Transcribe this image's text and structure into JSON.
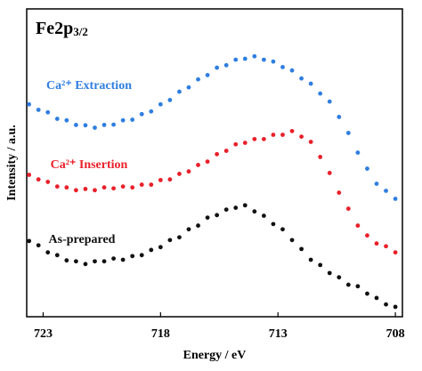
{
  "chart_data": {
    "type": "scatter",
    "title": "Fe2p",
    "title_subscript": "3/2",
    "x_label": "Energy / eV",
    "y_label": "Intensity / a.u.",
    "xlim": [
      723.7,
      707.7
    ],
    "xticks": [
      723,
      718,
      713,
      708
    ],
    "ylim": [
      0,
      100
    ],
    "x": [
      723.6,
      723.2,
      722.8,
      722.4,
      722.0,
      721.6,
      721.2,
      720.8,
      720.4,
      720.0,
      719.6,
      719.2,
      718.8,
      718.4,
      718.0,
      717.6,
      717.2,
      716.8,
      716.4,
      716.0,
      715.6,
      715.2,
      714.8,
      714.4,
      714.0,
      713.6,
      713.2,
      712.8,
      712.4,
      712.0,
      711.6,
      711.2,
      710.8,
      710.4,
      710.0,
      709.6,
      709.2,
      708.8,
      708.4,
      708.0
    ],
    "series": [
      {
        "name": "Ca²⁺ Extraction",
        "color": "#2f7ee0",
        "values": [
          69.0,
          67.2,
          66.4,
          64.3,
          63.8,
          62.3,
          62.2,
          61.4,
          62.3,
          62.4,
          63.8,
          64.0,
          65.8,
          66.7,
          69.0,
          70.4,
          73.1,
          74.5,
          77.1,
          78.5,
          80.9,
          81.7,
          83.5,
          83.8,
          84.6,
          83.5,
          82.9,
          81.1,
          80.0,
          77.4,
          75.7,
          72.5,
          69.9,
          64.9,
          59.7,
          53.3,
          48.1,
          43.2,
          40.9,
          38.3
        ]
      },
      {
        "name": "Ca²⁺ Insertion",
        "color": "#e8202a",
        "values": [
          46.1,
          44.6,
          43.8,
          42.3,
          42.0,
          41.1,
          41.5,
          41.1,
          42.0,
          41.7,
          42.3,
          42.0,
          42.9,
          42.9,
          44.4,
          44.6,
          46.4,
          47.2,
          49.3,
          50.4,
          52.8,
          53.9,
          56.0,
          56.5,
          57.7,
          57.7,
          59.1,
          59.1,
          60.3,
          58.5,
          56.8,
          51.9,
          46.7,
          40.3,
          35.1,
          29.6,
          26.4,
          23.8,
          22.9,
          20.9
        ]
      },
      {
        "name": "As-prepared",
        "color": "#111111",
        "values": [
          24.6,
          23.2,
          20.9,
          20.0,
          18.3,
          18.0,
          17.1,
          18.0,
          18.0,
          18.9,
          18.5,
          19.7,
          20.0,
          21.7,
          22.6,
          24.9,
          25.8,
          28.4,
          29.6,
          32.2,
          33.0,
          34.8,
          35.4,
          36.2,
          34.2,
          32.8,
          30.1,
          28.4,
          24.9,
          22.0,
          18.5,
          16.8,
          14.2,
          12.8,
          10.4,
          9.9,
          7.5,
          6.1,
          4.0,
          3.2
        ]
      }
    ]
  }
}
